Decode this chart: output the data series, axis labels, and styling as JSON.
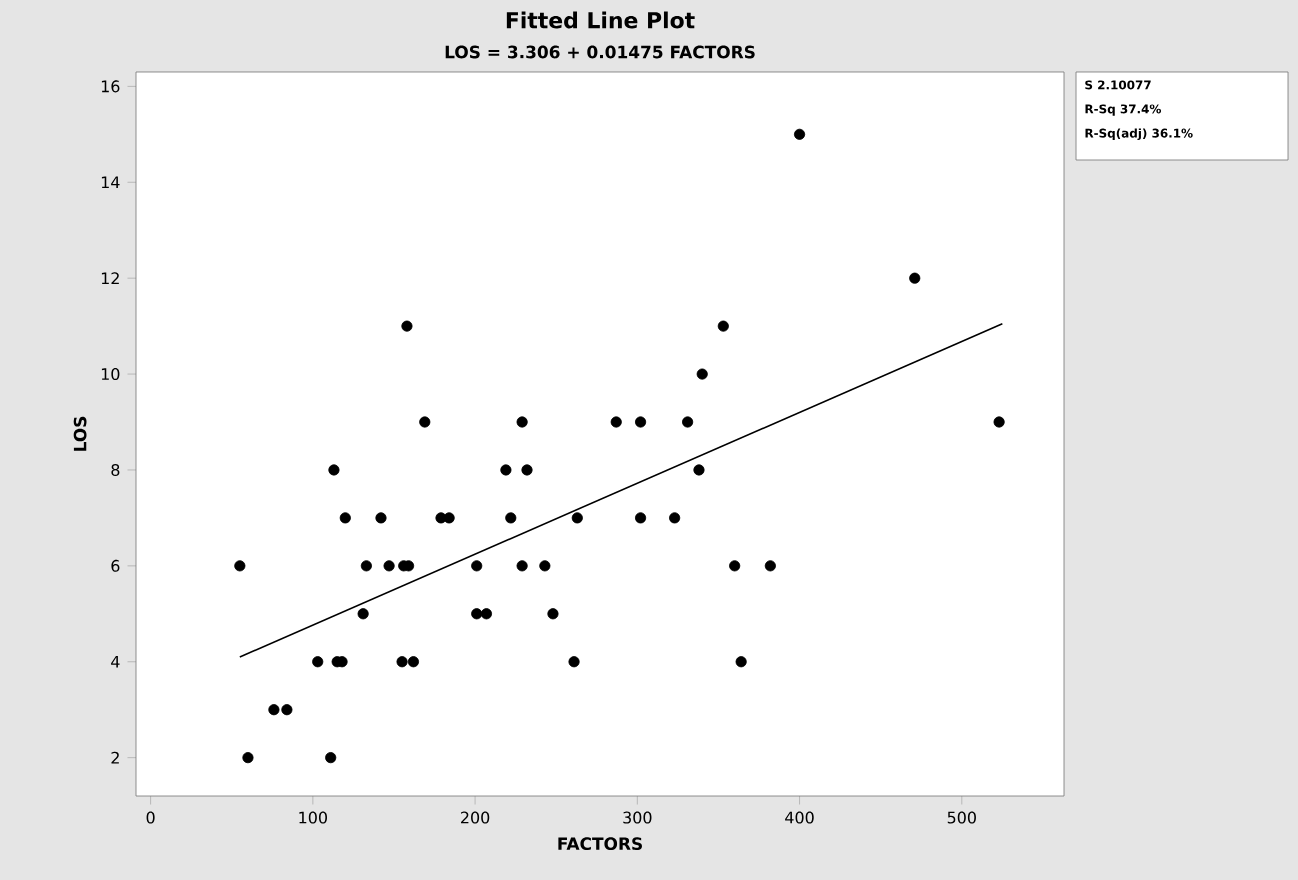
{
  "chart_data": {
    "type": "scatter",
    "title": "Fitted Line Plot",
    "subtitle": "LOS = 3.306 + 0.01475 FACTORS",
    "xlabel": "FACTORS",
    "ylabel": "LOS",
    "x": [
      55,
      60,
      76,
      84,
      103,
      111,
      113,
      115,
      118,
      120,
      131,
      133,
      142,
      147,
      155,
      162,
      156,
      159,
      158,
      169,
      179,
      184,
      201,
      201,
      207,
      219,
      222,
      229,
      229,
      232,
      243,
      248,
      261,
      263,
      287,
      302,
      302,
      323,
      331,
      338,
      340,
      353,
      360,
      364,
      382,
      400,
      471,
      523
    ],
    "series": [
      {
        "color": "#000000",
        "marker": "circle",
        "values": [
          6,
          2,
          3,
          3,
          4,
          2,
          8,
          4,
          4,
          7,
          5,
          6,
          7,
          6,
          4,
          4,
          6,
          6,
          11,
          9,
          7,
          7,
          6,
          5,
          5,
          8,
          7,
          9,
          6,
          8,
          6,
          5,
          4,
          7,
          9,
          9,
          7,
          7,
          9,
          8,
          10,
          11,
          6,
          4,
          6,
          15,
          12,
          9
        ]
      },
      {
        "type": "line",
        "color": "#000000",
        "marker": "none",
        "line_style": "solid",
        "x": [
          55,
          525
        ],
        "values": [
          4.1,
          11.05
        ]
      }
    ],
    "xlim": [
      -9,
      563
    ],
    "ylim": [
      1.2,
      16.3
    ],
    "xticks": [
      0,
      100,
      200,
      300,
      400,
      500
    ],
    "yticks": [
      2,
      4,
      6,
      8,
      10,
      12,
      14,
      16
    ],
    "grid": false,
    "annotations": [
      "S 2.10077",
      "R-Sq 37.4%",
      "R-Sq(adj) 36.1%"
    ]
  }
}
